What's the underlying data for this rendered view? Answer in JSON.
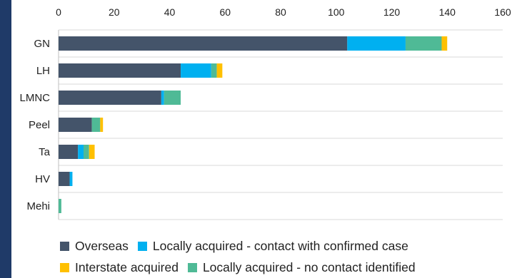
{
  "chart_data": {
    "type": "bar",
    "orientation": "horizontal",
    "stacked": true,
    "categories": [
      "GN",
      "LH",
      "LMNC",
      "Peel",
      "Ta",
      "HV",
      "Mehi"
    ],
    "series": [
      {
        "name": "Overseas",
        "color": "#44546a",
        "values": [
          104,
          44,
          37,
          12,
          7,
          4,
          0
        ]
      },
      {
        "name": "Locally acquired - contact with confirmed case",
        "color": "#00b0f0",
        "values": [
          21,
          11,
          1,
          0,
          2,
          1,
          0
        ]
      },
      {
        "name": "Locally acquired - no contact identified",
        "color": "#4fba96",
        "values": [
          13,
          2,
          6,
          3,
          2,
          0,
          1
        ]
      },
      {
        "name": "Interstate acquired",
        "color": "#ffc000",
        "values": [
          2,
          2,
          0,
          1,
          2,
          0,
          0
        ]
      }
    ],
    "xlim": [
      0,
      160
    ],
    "xticks": [
      "0",
      "20",
      "40",
      "60",
      "80",
      "100",
      "120",
      "140",
      "160"
    ],
    "grid": true,
    "legend_position": "bottom"
  },
  "legend": {
    "rows": [
      [
        0,
        1
      ],
      [
        3,
        2
      ]
    ]
  }
}
